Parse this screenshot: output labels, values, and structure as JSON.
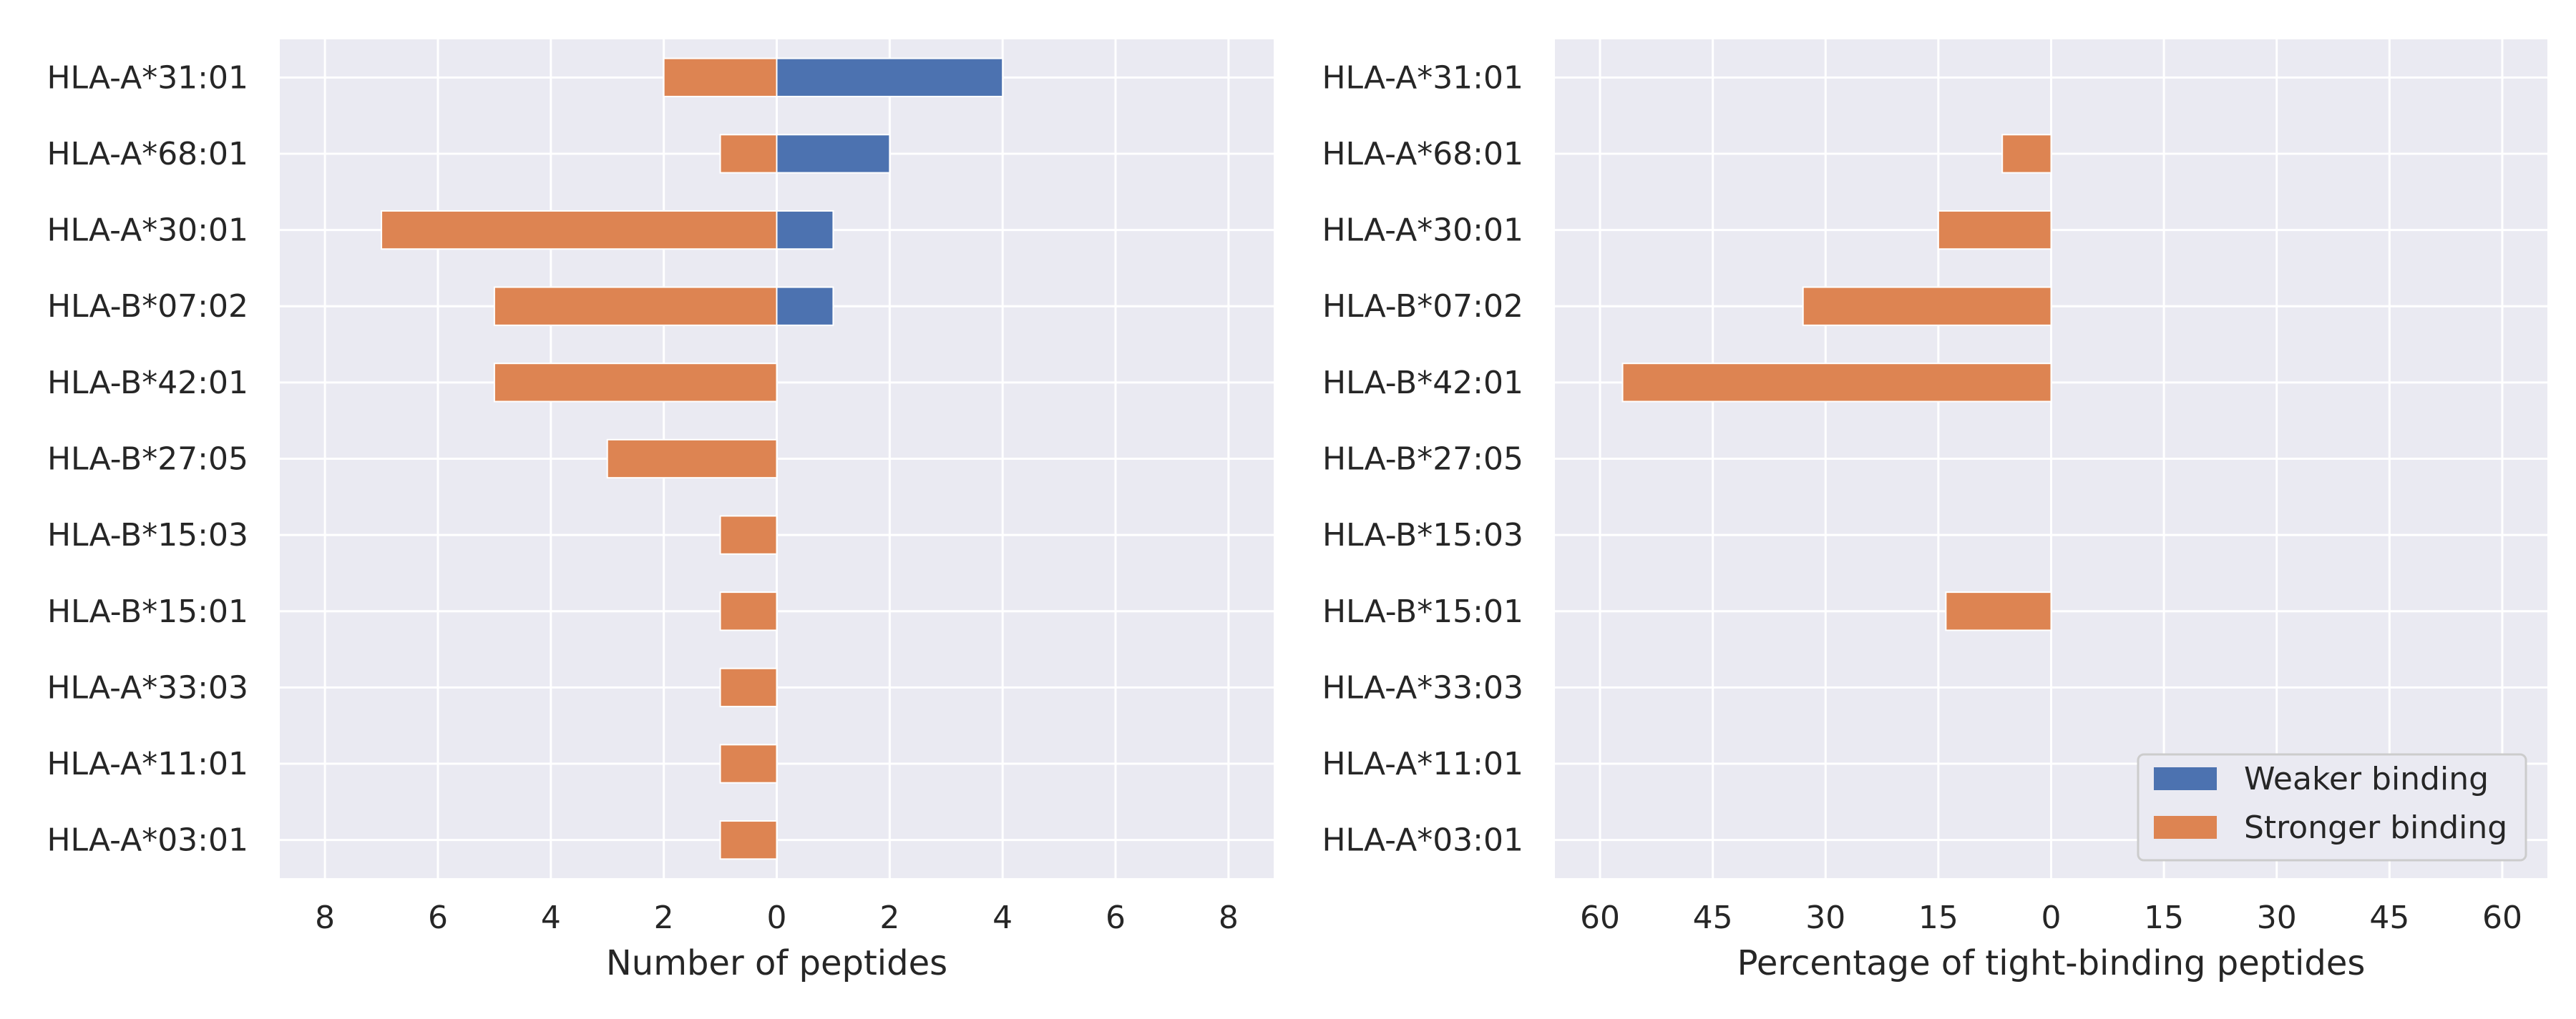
{
  "colors": {
    "weaker": "#4c72b0",
    "stronger": "#dd8452",
    "panel_bg": "#eaeaf2",
    "grid": "#ffffff"
  },
  "legend": {
    "weaker_label": "Weaker binding",
    "stronger_label": "Stronger binding",
    "location": "lower-right of right panel"
  },
  "chart_data": [
    {
      "type": "bar",
      "orientation": "horizontal",
      "stacked": "diverging",
      "xlabel": "Number of peptides",
      "ylabel": "",
      "xlim": [
        -8.8,
        8.8
      ],
      "xticks": [
        -8,
        -6,
        -4,
        -2,
        0,
        2,
        4,
        6,
        8
      ],
      "xtick_labels": [
        "8",
        "6",
        "4",
        "2",
        "0",
        "2",
        "4",
        "6",
        "8"
      ],
      "grid": true,
      "categories": [
        "HLA-A*31:01",
        "HLA-A*68:01",
        "HLA-A*30:01",
        "HLA-B*07:02",
        "HLA-B*42:01",
        "HLA-B*27:05",
        "HLA-B*15:03",
        "HLA-B*15:01",
        "HLA-A*33:03",
        "HLA-A*11:01",
        "HLA-A*03:01"
      ],
      "series": [
        {
          "name": "Stronger binding",
          "direction": "left",
          "values": [
            2,
            1,
            7,
            5,
            5,
            3,
            1,
            1,
            1,
            1,
            1
          ]
        },
        {
          "name": "Weaker binding",
          "direction": "right",
          "values": [
            4,
            2,
            1,
            1,
            0,
            0,
            0,
            0,
            0,
            0,
            0
          ]
        }
      ]
    },
    {
      "type": "bar",
      "orientation": "horizontal",
      "stacked": "diverging",
      "xlabel": "Percentage of tight-binding peptides",
      "ylabel": "",
      "xlim": [
        -66,
        66
      ],
      "xticks": [
        -60,
        -45,
        -30,
        -15,
        0,
        15,
        30,
        45,
        60
      ],
      "xtick_labels": [
        "60",
        "45",
        "30",
        "15",
        "0",
        "15",
        "30",
        "45",
        "60"
      ],
      "grid": true,
      "categories": [
        "HLA-A*31:01",
        "HLA-A*68:01",
        "HLA-A*30:01",
        "HLA-B*07:02",
        "HLA-B*42:01",
        "HLA-B*27:05",
        "HLA-B*15:03",
        "HLA-B*15:01",
        "HLA-A*33:03",
        "HLA-A*11:01",
        "HLA-A*03:01"
      ],
      "series": [
        {
          "name": "Stronger binding",
          "direction": "left",
          "values": [
            0,
            6.5,
            15,
            33,
            57,
            0,
            0,
            14,
            0,
            0,
            0
          ]
        },
        {
          "name": "Weaker binding",
          "direction": "right",
          "values": [
            0,
            0,
            0,
            0,
            0,
            0,
            0,
            0,
            0,
            0,
            0
          ]
        }
      ]
    }
  ]
}
